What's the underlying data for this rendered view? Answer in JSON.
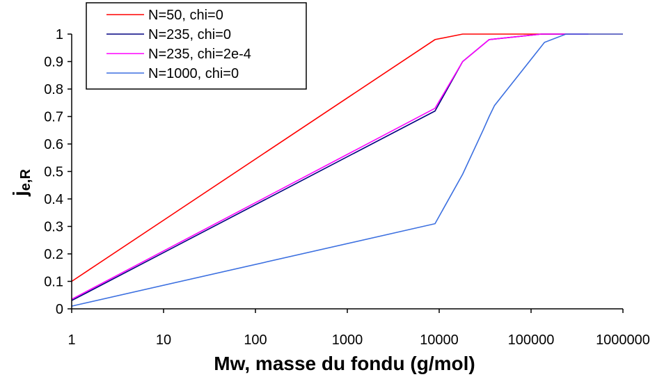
{
  "chart_data": {
    "type": "line",
    "title": "",
    "xlabel": "Mw, masse du fondu (g/mol)",
    "ylabel_main": "j",
    "ylabel_sub": "e,R",
    "x_scale": "log",
    "xlim": [
      1,
      1000000
    ],
    "ylim": [
      0,
      1
    ],
    "x_ticks": [
      "1",
      "10",
      "100",
      "1000",
      "10000",
      "100000",
      "1000000"
    ],
    "y_ticks": [
      "0",
      "0.1",
      "0.2",
      "0.3",
      "0.4",
      "0.5",
      "0.6",
      "0.7",
      "0.8",
      "0.9",
      "1"
    ],
    "grid": false,
    "legend_position": "top-left",
    "series": [
      {
        "name": "N=50, chi=0",
        "color": "#ff0000",
        "x": [
          1,
          9000,
          18000,
          100000,
          1000000
        ],
        "y": [
          0.1,
          0.98,
          1.0,
          1.0,
          1.0
        ]
      },
      {
        "name": "N=235, chi=0",
        "color": "#000080",
        "x": [
          1,
          9000,
          18000,
          35000,
          130000,
          420000
        ],
        "y": [
          0.03,
          0.72,
          0.9,
          0.98,
          1.0,
          1.0
        ]
      },
      {
        "name": "N=235, chi=2e-4",
        "color": "#ff00ff",
        "x": [
          1,
          9000,
          18000,
          35000,
          130000,
          420000
        ],
        "y": [
          0.035,
          0.73,
          0.9,
          0.98,
          1.0,
          1.0
        ]
      },
      {
        "name": "N=1000, chi=0",
        "color": "#3b6fe0",
        "x": [
          1,
          9000,
          18000,
          30000,
          35000,
          40000,
          140000,
          240000,
          1000000
        ],
        "y": [
          0.01,
          0.31,
          0.49,
          0.65,
          0.7,
          0.74,
          0.97,
          1.0,
          1.0
        ]
      }
    ]
  }
}
